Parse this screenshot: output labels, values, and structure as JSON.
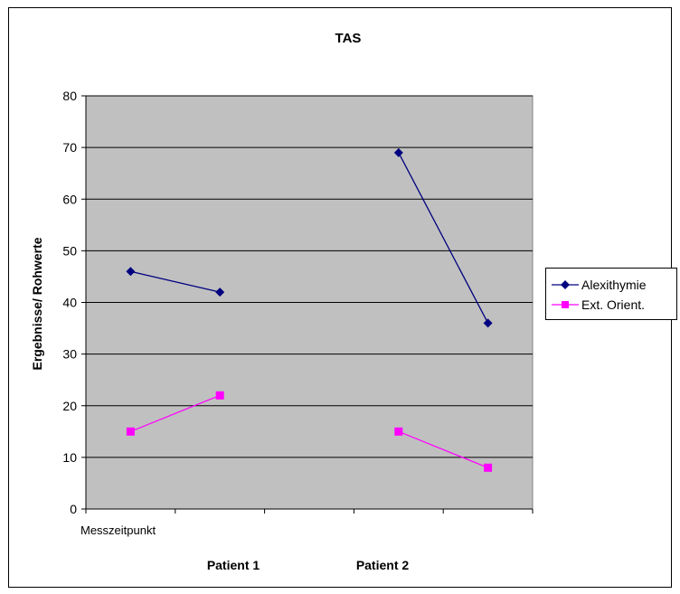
{
  "chart_data": {
    "type": "line",
    "title": "TAS",
    "ylabel": "Ergebnisse/ Rohwerte",
    "xlabel": "",
    "ylim": [
      0,
      80
    ],
    "yticks": [
      0,
      10,
      20,
      30,
      40,
      50,
      60,
      70,
      80
    ],
    "grid": true,
    "legend_position": "right",
    "x_first_category_label": "Messzeitpunkt",
    "group_labels": [
      "Patient 1",
      "Patient 2"
    ],
    "x_slots": 5,
    "series": [
      {
        "name": "Alexithymie",
        "color": "#000080",
        "marker": "diamond",
        "segments": [
          {
            "x": [
              0,
              1
            ],
            "values": [
              46,
              42
            ]
          },
          {
            "x": [
              3,
              4
            ],
            "values": [
              69,
              36
            ]
          }
        ]
      },
      {
        "name": "Ext. Orient.",
        "color": "#ff00ff",
        "marker": "square",
        "segments": [
          {
            "x": [
              0,
              1
            ],
            "values": [
              15,
              22
            ]
          },
          {
            "x": [
              3,
              4
            ],
            "values": [
              15,
              8
            ]
          }
        ]
      }
    ],
    "plot_background": "#c0c0c0"
  }
}
